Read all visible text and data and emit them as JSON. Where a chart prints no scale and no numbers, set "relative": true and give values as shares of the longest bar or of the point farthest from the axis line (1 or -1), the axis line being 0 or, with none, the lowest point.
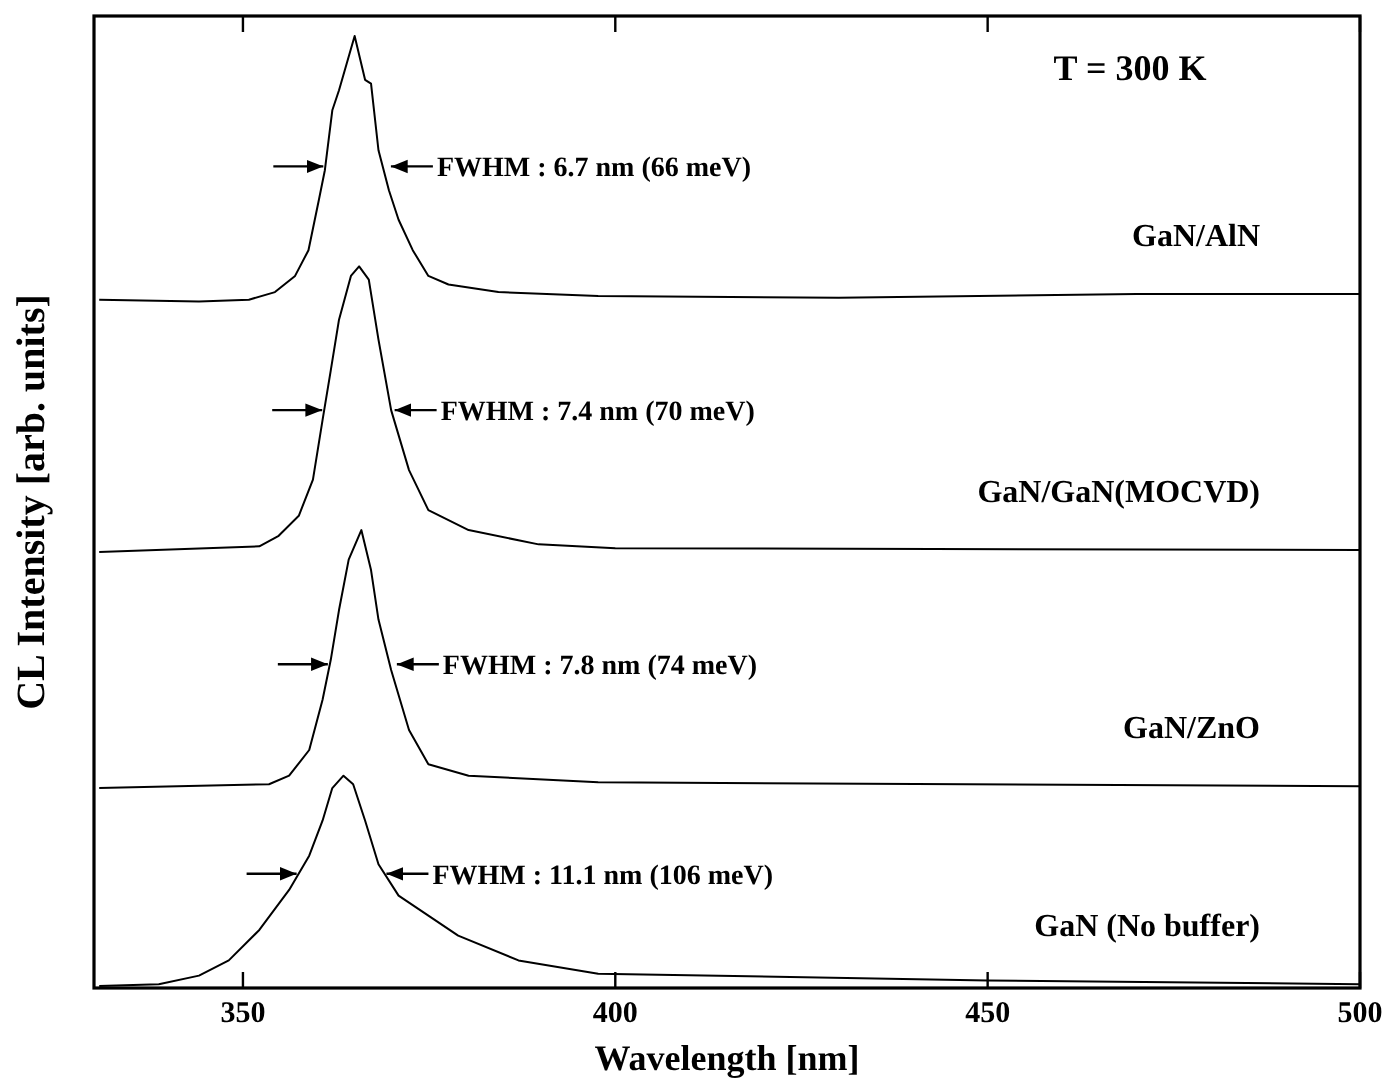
{
  "chart_data": {
    "type": "line",
    "relative": true,
    "xlabel": "Wavelength [nm]",
    "ylabel": "CL Intensity [arb. units]",
    "xlim": [
      330,
      500
    ],
    "xticks": [
      350,
      400,
      450,
      500
    ],
    "line_style": "solid",
    "series": [
      {
        "name": "GaN/AlN",
        "color": "#000000",
        "x": [
          330.7,
          344.1,
          350.8,
          354.3,
          357,
          358.8,
          360.2,
          361,
          362,
          362.9,
          365,
          366.4,
          367.2,
          368.2,
          369.6,
          370.9,
          372.8,
          374.9,
          377.6,
          384.3,
          397.7,
          430,
          470,
          500
        ],
        "values": [
          0.723,
          0.721,
          0.723,
          0.731,
          0.748,
          0.775,
          0.828,
          0.859,
          0.922,
          0.943,
          1,
          0.954,
          0.95,
          0.88,
          0.838,
          0.807,
          0.775,
          0.748,
          0.739,
          0.731,
          0.727,
          0.725,
          0.729,
          0.729
        ]
      },
      {
        "name": "GaN/GaN(MOCVD)",
        "color": "#000000",
        "x": [
          330.7,
          352.2,
          354.8,
          357.5,
          359.4,
          360.7,
          361.8,
          362.9,
          364.5,
          365.6,
          366.9,
          368.2,
          369.9,
          372.3,
          374.9,
          380.3,
          389.7,
          400,
          500
        ],
        "values": [
          0.458,
          0.464,
          0.475,
          0.496,
          0.534,
          0.597,
          0.649,
          0.702,
          0.748,
          0.758,
          0.744,
          0.681,
          0.607,
          0.544,
          0.502,
          0.481,
          0.466,
          0.462,
          0.46
        ]
      },
      {
        "name": "GaN/ZnO",
        "color": "#000000",
        "x": [
          330.7,
          353.5,
          356.2,
          358.9,
          360.7,
          361.8,
          362.9,
          364.2,
          365.9,
          367.2,
          368.2,
          369.9,
          372.3,
          374.9,
          380.3,
          397.7,
          500
        ],
        "values": [
          0.21,
          0.214,
          0.223,
          0.25,
          0.303,
          0.345,
          0.397,
          0.45,
          0.481,
          0.439,
          0.387,
          0.334,
          0.271,
          0.235,
          0.223,
          0.216,
          0.212
        ]
      },
      {
        "name": "GaN (No buffer)",
        "color": "#000000",
        "x": [
          330.7,
          338.7,
          344.1,
          348.1,
          352.2,
          356.2,
          358.9,
          360.7,
          362,
          363.5,
          364.8,
          366.4,
          368.2,
          370.9,
          374.9,
          378.9,
          387,
          397.7,
          450,
          500
        ],
        "values": [
          0.002,
          0.004,
          0.013,
          0.029,
          0.061,
          0.103,
          0.139,
          0.176,
          0.21,
          0.223,
          0.214,
          0.176,
          0.13,
          0.097,
          0.076,
          0.055,
          0.029,
          0.015,
          0.008,
          0.004
        ]
      }
    ],
    "annotations": [
      {
        "text": "FWHM : 6.7 nm (66 meV)",
        "x": 369.6,
        "y": 0.863
      },
      {
        "text": "FWHM : 7.4 nm (70 meV)",
        "x": 370.1,
        "y": 0.607
      },
      {
        "text": "FWHM : 7.8 nm (74 meV)",
        "x": 370.4,
        "y": 0.34
      },
      {
        "text": "FWHM : 11.1 nm (106 meV)",
        "x": 369,
        "y": 0.12
      },
      "T = 300 K"
    ]
  }
}
